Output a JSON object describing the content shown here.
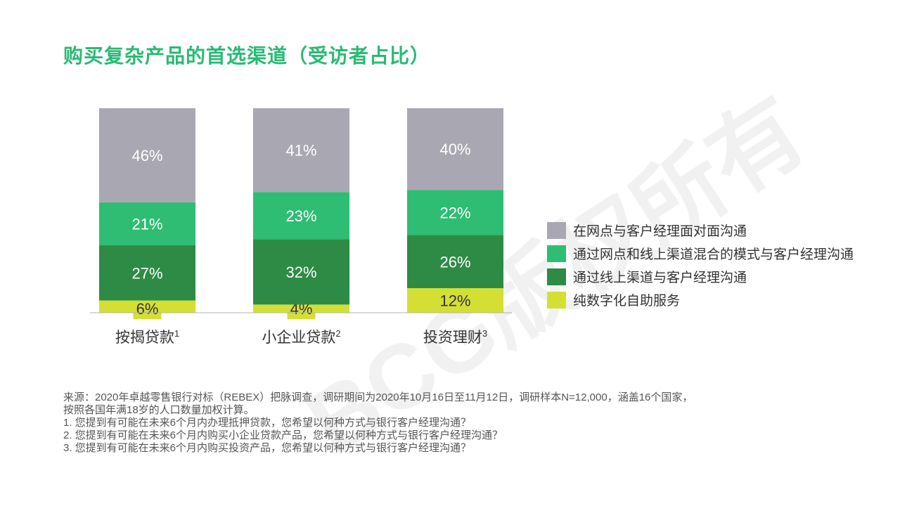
{
  "page": {
    "title": "购买复杂产品的首选渠道（受访者占比）",
    "watermark": "BCG版权所有"
  },
  "chart_data": {
    "type": "bar",
    "stacked": true,
    "categories": [
      {
        "label": "按揭贷款",
        "sup": "1"
      },
      {
        "label": "小企业贷款",
        "sup": "2"
      },
      {
        "label": "投资理财",
        "sup": "3"
      }
    ],
    "series": [
      {
        "name": "纯数字化自助服务",
        "color": "#d4df33",
        "values": [
          6,
          4,
          12
        ],
        "labels": [
          "6%",
          "4%",
          "12%"
        ]
      },
      {
        "name": "通过线上渠道与客户经理沟通",
        "color": "#2e8b45",
        "values": [
          27,
          32,
          26
        ],
        "labels": [
          "27%",
          "32%",
          "26%"
        ]
      },
      {
        "name": "通过网点和线上渠道混合的模式与客户经理沟通",
        "color": "#2ebd73",
        "values": [
          21,
          23,
          22
        ],
        "labels": [
          "21%",
          "23%",
          "22%"
        ]
      },
      {
        "name": "在网点与客户经理面对面沟通",
        "color": "#a9a8b2",
        "values": [
          46,
          41,
          40
        ],
        "labels": [
          "46%",
          "41%",
          "40%"
        ]
      }
    ],
    "ylim": [
      0,
      100
    ],
    "legend_position": "right",
    "grid": false
  },
  "footnotes": {
    "source_line1": "来源：2020年卓越零售银行对标（REBEX）把脉调查，调研期间为2020年10月16日至11月12日，调研样本N=12,000，涵盖16个国家，",
    "source_line2": "按照各国年满18岁的人口数量加权计算。",
    "note1": "1. 您提到有可能在未来6个月内办理抵押贷款，您希望以何种方式与银行客户经理沟通？",
    "note2": "2. 您提到有可能在未来6个月内购买小企业贷款产品，您希望以何种方式与银行客户经理沟通？",
    "note3": "3. 您提到有可能在未来6个月内购买投资产品，您希望以何种方式与银行客户经理沟通？"
  }
}
